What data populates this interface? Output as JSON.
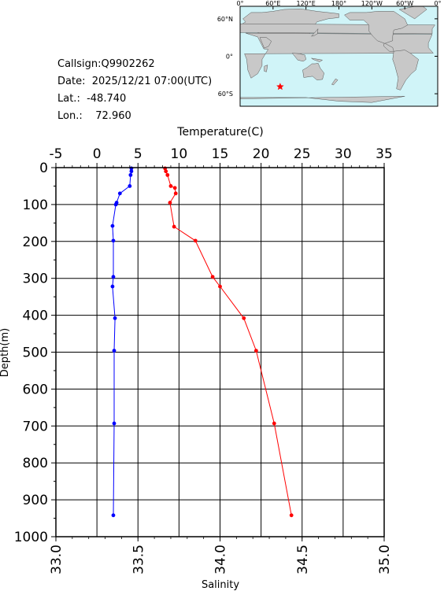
{
  "float_info": {
    "callsign_label": "Callsign:",
    "callsign": "Q9902262",
    "date_label": "Date:",
    "date": "2025/12/21 07:00(UTC)",
    "lat_label": "Lat.:",
    "lat": "-48.740",
    "lon_label": "Lon.:",
    "lon": "72.960"
  },
  "map": {
    "top_ticks": [
      "0°",
      "60°E",
      "120°E",
      "180°",
      "120°W",
      "60°W",
      "0°"
    ],
    "right_ticks": [
      "60°N",
      "0°",
      "60°S"
    ],
    "ocean_color": "#d0f4f8",
    "land_color": "#c8c8c8",
    "marker": {
      "lon": 72.96,
      "lat": -48.74,
      "color": "#ff0000"
    }
  },
  "chart_data": {
    "type": "line",
    "title": "",
    "ylabel": "Depth(m)",
    "top_xlabel": "Temperature(C)",
    "bottom_xlabel": "Salinity",
    "ylim": [
      0,
      1000
    ],
    "temperature_range": [
      -5,
      35
    ],
    "salinity_range": [
      33.0,
      35.0
    ],
    "depth_ticks": [
      "0",
      "100",
      "200",
      "300",
      "400",
      "500",
      "600",
      "700",
      "800",
      "900",
      "1000"
    ],
    "temperature_ticks": [
      "-5",
      "0",
      "5",
      "10",
      "15",
      "20",
      "25",
      "30",
      "35"
    ],
    "salinity_ticks": [
      "33.0",
      "33.5",
      "34.0",
      "34.5",
      "35.0"
    ],
    "grid": true,
    "series": [
      {
        "quantity": "temperature",
        "color": "#ff0000",
        "points": [
          {
            "depth": 2,
            "value": 8.3
          },
          {
            "depth": 10,
            "value": 8.4
          },
          {
            "depth": 20,
            "value": 8.6
          },
          {
            "depth": 50,
            "value": 9.0
          },
          {
            "depth": 55,
            "value": 9.5
          },
          {
            "depth": 70,
            "value": 9.6
          },
          {
            "depth": 95,
            "value": 8.9
          },
          {
            "depth": 160,
            "value": 9.4
          },
          {
            "depth": 198,
            "value": 12.0
          },
          {
            "depth": 296,
            "value": 14.1
          },
          {
            "depth": 322,
            "value": 15.0
          },
          {
            "depth": 408,
            "value": 17.9
          },
          {
            "depth": 496,
            "value": 19.4
          },
          {
            "depth": 693,
            "value": 21.6
          },
          {
            "depth": 942,
            "value": 23.7
          }
        ]
      },
      {
        "quantity": "salinity",
        "color": "#0000ff",
        "points": [
          {
            "depth": 2,
            "value": 33.46
          },
          {
            "depth": 10,
            "value": 33.46
          },
          {
            "depth": 20,
            "value": 33.455
          },
          {
            "depth": 50,
            "value": 33.45
          },
          {
            "depth": 70,
            "value": 33.39
          },
          {
            "depth": 95,
            "value": 33.37
          },
          {
            "depth": 100,
            "value": 33.365
          },
          {
            "depth": 158,
            "value": 33.345
          },
          {
            "depth": 198,
            "value": 33.35
          },
          {
            "depth": 296,
            "value": 33.35
          },
          {
            "depth": 322,
            "value": 33.345
          },
          {
            "depth": 408,
            "value": 33.36
          },
          {
            "depth": 496,
            "value": 33.355
          },
          {
            "depth": 693,
            "value": 33.355
          },
          {
            "depth": 942,
            "value": 33.35
          }
        ]
      }
    ]
  }
}
